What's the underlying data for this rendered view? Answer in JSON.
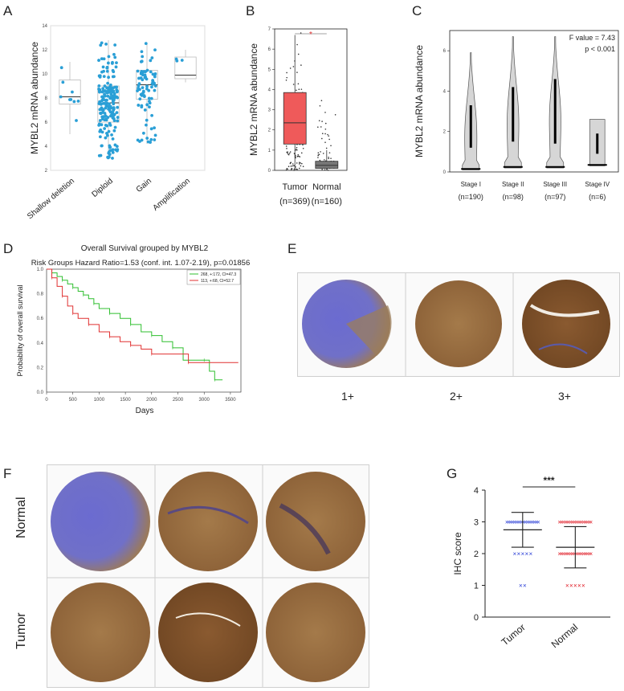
{
  "panels": {
    "A": "A",
    "B": "B",
    "C": "C",
    "D": "D",
    "E": "E",
    "F": "F",
    "G": "G"
  },
  "colors": {
    "blue_dot": "#2a9fd6",
    "tumor_box": "#ef5a5a",
    "normal_box": "#777777",
    "violin": "#d6d6d6",
    "km_green": "#2fbf2f",
    "km_red": "#e03030",
    "stain_brown": "#8a5a2b",
    "stain_blue": "#5a5ab8",
    "g_blue": "#2b3fd6",
    "g_red": "#e0202a"
  },
  "chart_data": [
    {
      "id": "A",
      "type": "scatter",
      "ylabel": "MYBL2 mRNA abundance",
      "categories": [
        "Shallow deletion",
        "Diploid",
        "Gain",
        "Amplification"
      ],
      "y_ticks": [
        "2",
        "4",
        "6",
        "8",
        "10",
        "12",
        "14"
      ],
      "ylim": [
        2,
        14
      ],
      "box": [
        {
          "q1": 7.5,
          "median": 8.1,
          "q3": 9.5,
          "min": 5.0,
          "max": 11.0
        },
        {
          "q1": 6.0,
          "median": 7.6,
          "q3": 9.0,
          "min": 3.0,
          "max": 12.8
        },
        {
          "q1": 7.9,
          "median": 9.1,
          "q3": 10.3,
          "min": 4.2,
          "max": 12.6
        },
        {
          "q1": 9.6,
          "median": 9.9,
          "q3": 11.4,
          "min": 9.3,
          "max": 12.0
        }
      ],
      "n_points": [
        9,
        200,
        80,
        3
      ]
    },
    {
      "id": "B",
      "type": "bar",
      "ylabel": "MYBL2 mRNA abundance",
      "categories": [
        "Tumor",
        "Normal"
      ],
      "category_n": [
        "(n=369)",
        "(n=160)"
      ],
      "y_ticks": [
        "0",
        "1",
        "2",
        "3",
        "4",
        "5",
        "6",
        "7"
      ],
      "ylim": [
        0,
        7
      ],
      "box": [
        {
          "q1": 1.3,
          "median": 2.35,
          "q3": 3.85,
          "min": 0,
          "max": 6.7
        },
        {
          "q1": 0.1,
          "median": 0.25,
          "q3": 0.45,
          "min": 0,
          "max": 1.0
        }
      ],
      "significance": "*"
    },
    {
      "id": "C",
      "type": "area",
      "ylabel": "MYBL2 mRNA abundance",
      "categories": [
        "Stage I",
        "Stage II",
        "Stage III",
        "Stage IV"
      ],
      "category_n": [
        "(n=190)",
        "(n=98)",
        "(n=97)",
        "(n=6)"
      ],
      "y_ticks": [
        "0",
        "2",
        "4",
        "6"
      ],
      "ylim": [
        0,
        7
      ],
      "ranges": [
        [
          0.1,
          5.9
        ],
        [
          0.2,
          6.7
        ],
        [
          0.2,
          6.7
        ],
        [
          0.3,
          2.6
        ]
      ],
      "iqr": [
        [
          1.2,
          3.3
        ],
        [
          1.5,
          4.2
        ],
        [
          1.4,
          4.6
        ],
        [
          0.9,
          1.9
        ]
      ],
      "annotation_f": "F value = 7.43",
      "annotation_p": "p < 0.001"
    },
    {
      "id": "D",
      "type": "line",
      "title": "Overall Survival grouped by MYBL2",
      "subtitle": "Risk Groups Hazard Ratio=1.53 (conf. int. 1.07-2.19), p=0.01856",
      "xlabel": "Days",
      "ylabel": "Probability of overall survival",
      "x_ticks": [
        "0",
        "500",
        "1000",
        "1500",
        "2000",
        "2500",
        "3000",
        "3500"
      ],
      "y_ticks": [
        "0.0",
        "0.2",
        "0.4",
        "0.6",
        "0.8",
        "1.0"
      ],
      "xlim": [
        0,
        3700
      ],
      "ylim": [
        0,
        1
      ],
      "series": [
        {
          "name": "268, +:172, CI=47.3",
          "color": "green",
          "points": [
            [
              0,
              1.0
            ],
            [
              100,
              0.97
            ],
            [
              200,
              0.94
            ],
            [
              300,
              0.91
            ],
            [
              400,
              0.88
            ],
            [
              500,
              0.85
            ],
            [
              600,
              0.82
            ],
            [
              700,
              0.79
            ],
            [
              800,
              0.76
            ],
            [
              900,
              0.72
            ],
            [
              1000,
              0.68
            ],
            [
              1200,
              0.64
            ],
            [
              1400,
              0.6
            ],
            [
              1600,
              0.55
            ],
            [
              1800,
              0.49
            ],
            [
              2000,
              0.46
            ],
            [
              2200,
              0.41
            ],
            [
              2400,
              0.36
            ],
            [
              2600,
              0.26
            ],
            [
              3000,
              0.26
            ],
            [
              3100,
              0.17
            ],
            [
              3200,
              0.1
            ],
            [
              3350,
              0.1
            ]
          ]
        },
        {
          "name": "113, +:68, CI=52.7",
          "color": "red",
          "points": [
            [
              0,
              1.0
            ],
            [
              100,
              0.93
            ],
            [
              200,
              0.86
            ],
            [
              300,
              0.78
            ],
            [
              400,
              0.7
            ],
            [
              500,
              0.64
            ],
            [
              600,
              0.6
            ],
            [
              800,
              0.55
            ],
            [
              1000,
              0.49
            ],
            [
              1200,
              0.45
            ],
            [
              1400,
              0.41
            ],
            [
              1600,
              0.38
            ],
            [
              1800,
              0.35
            ],
            [
              2000,
              0.31
            ],
            [
              2600,
              0.31
            ],
            [
              2700,
              0.24
            ],
            [
              3650,
              0.24
            ]
          ]
        }
      ]
    },
    {
      "id": "G",
      "type": "scatter",
      "ylabel": "IHC score",
      "categories": [
        "Tumor",
        "Normal"
      ],
      "y_ticks": [
        "0",
        "1",
        "2",
        "3",
        "4"
      ],
      "ylim": [
        0,
        4
      ],
      "mean": [
        2.75,
        2.2
      ],
      "sd_low": [
        2.2,
        1.55
      ],
      "sd_high": [
        3.3,
        2.85
      ],
      "significance": "***",
      "marker": "×"
    }
  ],
  "panel_e_labels": [
    "1+",
    "2+",
    "3+"
  ],
  "panel_f_rows": [
    "Normal",
    "Tumor"
  ]
}
